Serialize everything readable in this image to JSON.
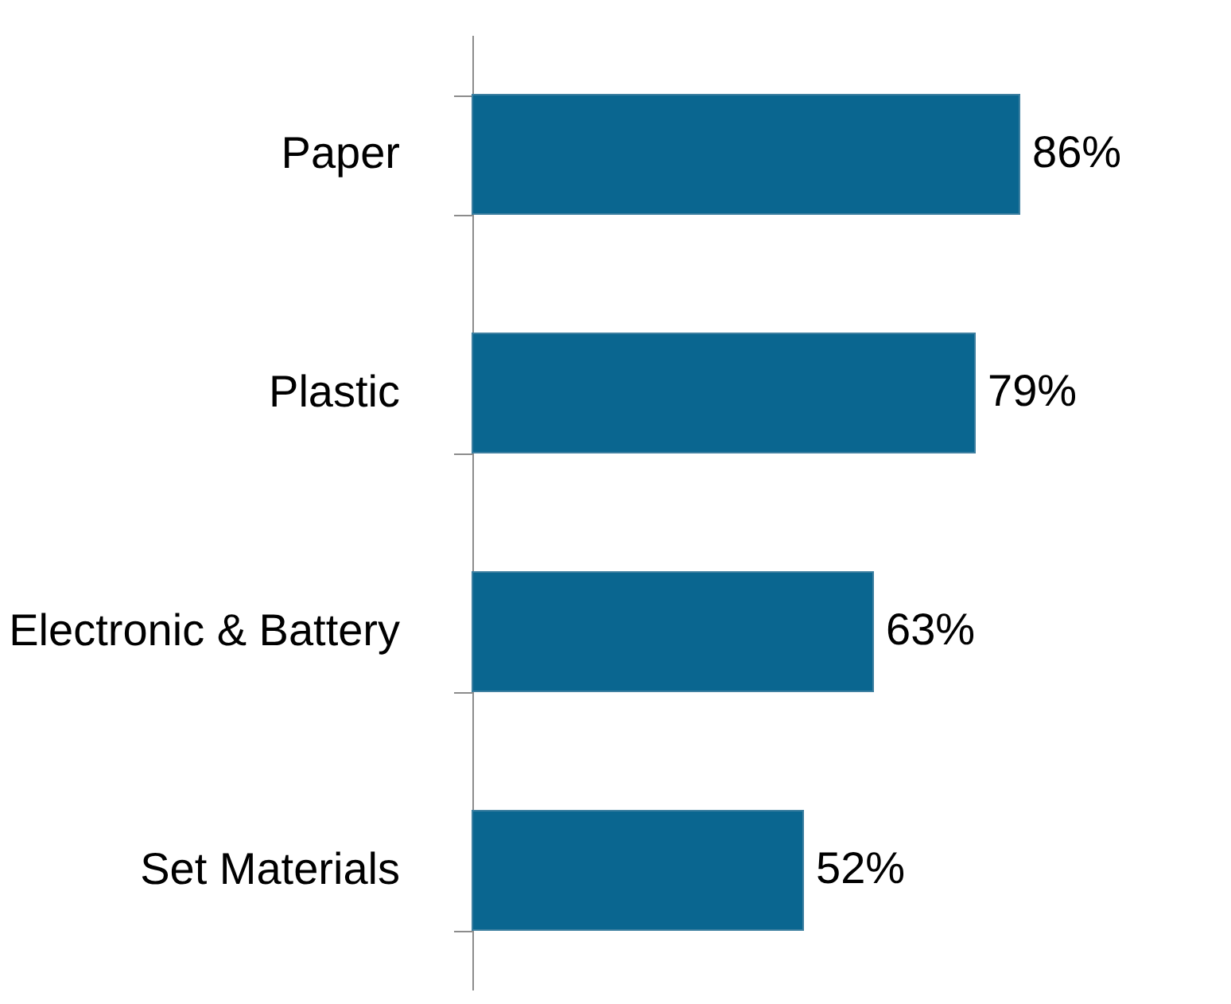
{
  "chart_data": {
    "type": "bar",
    "orientation": "horizontal",
    "categories": [
      "Paper",
      "Plastic",
      "Electronic & Battery",
      "Set Materials"
    ],
    "values": [
      86,
      79,
      63,
      52
    ],
    "value_labels": [
      "86%",
      "79%",
      "63%",
      "52%"
    ],
    "color": "#0a6690",
    "tick_labels": "y",
    "grid": false
  }
}
